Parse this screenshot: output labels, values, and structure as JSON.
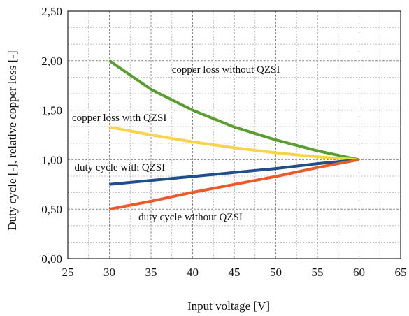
{
  "chart_data": {
    "type": "line",
    "title": "",
    "xlabel": "Input voltage [V]",
    "ylabel": "Duty cycle [-], relative copper loss [-]",
    "xlim": [
      25,
      65
    ],
    "ylim": [
      0,
      2.5
    ],
    "x_ticks": [
      25,
      30,
      35,
      40,
      45,
      50,
      55,
      60,
      65
    ],
    "x_tick_labels": [
      "25",
      "30",
      "35",
      "40",
      "45",
      "50",
      "55",
      "60",
      "65"
    ],
    "y_ticks": [
      0,
      0.5,
      1.0,
      1.5,
      2.0,
      2.5
    ],
    "y_tick_labels": [
      "0,00",
      "0,50",
      "1,00",
      "1,50",
      "2,00",
      "2,50"
    ],
    "grid": true,
    "legend": "none",
    "series": [
      {
        "name": "copper loss without QZSI",
        "color": "#5a9e2f",
        "x": [
          30,
          35,
          40,
          45,
          50,
          55,
          60
        ],
        "y": [
          2.0,
          1.71,
          1.5,
          1.33,
          1.2,
          1.09,
          1.0
        ]
      },
      {
        "name": "copper loss with QZSI",
        "color": "#f7d44a",
        "x": [
          30,
          35,
          40,
          45,
          50,
          55,
          60
        ],
        "y": [
          1.33,
          1.25,
          1.18,
          1.12,
          1.07,
          1.03,
          1.0
        ]
      },
      {
        "name": "duty cycle with QZSI",
        "color": "#1f4e8c",
        "x": [
          30,
          35,
          40,
          45,
          50,
          55,
          60
        ],
        "y": [
          0.75,
          0.79,
          0.83,
          0.87,
          0.91,
          0.96,
          1.0
        ]
      },
      {
        "name": "duty cycle without QZSI",
        "color": "#ec5a2a",
        "x": [
          30,
          35,
          40,
          45,
          50,
          55,
          60
        ],
        "y": [
          0.5,
          0.58,
          0.67,
          0.75,
          0.83,
          0.92,
          1.0
        ]
      }
    ],
    "annotations": [
      {
        "text": "copper loss without QZSI",
        "x": 37.5,
        "y": 1.88
      },
      {
        "text": "copper loss with QZSI",
        "x": 25.5,
        "y": 1.39
      },
      {
        "text": "duty cycle with QZSI",
        "x": 25.8,
        "y": 0.89
      },
      {
        "text": "duty cycle without QZSI",
        "x": 33.5,
        "y": 0.39
      }
    ]
  }
}
